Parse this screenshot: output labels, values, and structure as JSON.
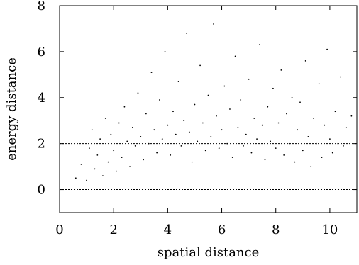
{
  "chart_data": {
    "type": "scatter",
    "title": "",
    "xlabel": "spatial distance",
    "ylabel": "energy distance",
    "xlim": [
      0,
      11
    ],
    "ylim": [
      -1,
      8
    ],
    "xticks": [
      0,
      2,
      4,
      6,
      8,
      10
    ],
    "yticks": [
      0,
      2,
      4,
      6,
      8
    ],
    "reference_lines": [
      {
        "axis": "y",
        "value": 2,
        "style": "dashed"
      },
      {
        "axis": "y",
        "value": 0,
        "style": "dashed"
      }
    ],
    "grid": false,
    "legend": "none",
    "point_color": "#000000",
    "series": [
      {
        "points": [
          [
            0.6,
            0.5
          ],
          [
            0.8,
            1.1
          ],
          [
            1.0,
            0.4
          ],
          [
            1.1,
            1.8
          ],
          [
            1.2,
            2.6
          ],
          [
            1.3,
            0.9
          ],
          [
            1.4,
            1.5
          ],
          [
            1.5,
            2.2
          ],
          [
            1.6,
            0.6
          ],
          [
            1.7,
            3.1
          ],
          [
            1.8,
            1.2
          ],
          [
            1.9,
            2.4
          ],
          [
            2.0,
            1.7
          ],
          [
            2.1,
            0.8
          ],
          [
            2.2,
            2.9
          ],
          [
            2.3,
            1.4
          ],
          [
            2.4,
            3.6
          ],
          [
            2.5,
            2.1
          ],
          [
            2.6,
            1.0
          ],
          [
            2.7,
            2.7
          ],
          [
            2.8,
            1.9
          ],
          [
            2.9,
            4.2
          ],
          [
            3.0,
            2.3
          ],
          [
            3.1,
            1.3
          ],
          [
            3.2,
            3.3
          ],
          [
            3.3,
            2.0
          ],
          [
            3.4,
            5.1
          ],
          [
            3.5,
            2.6
          ],
          [
            3.6,
            1.6
          ],
          [
            3.7,
            3.9
          ],
          [
            3.8,
            2.2
          ],
          [
            3.9,
            6.0
          ],
          [
            4.0,
            2.8
          ],
          [
            4.1,
            1.5
          ],
          [
            4.2,
            3.4
          ],
          [
            4.3,
            2.4
          ],
          [
            4.4,
            4.7
          ],
          [
            4.5,
            1.9
          ],
          [
            4.6,
            3.0
          ],
          [
            4.7,
            6.8
          ],
          [
            4.8,
            2.5
          ],
          [
            4.9,
            1.2
          ],
          [
            5.0,
            3.7
          ],
          [
            5.1,
            2.1
          ],
          [
            5.2,
            5.4
          ],
          [
            5.3,
            2.9
          ],
          [
            5.4,
            1.7
          ],
          [
            5.5,
            4.1
          ],
          [
            5.6,
            2.3
          ],
          [
            5.7,
            7.2
          ],
          [
            5.8,
            3.2
          ],
          [
            5.9,
            1.8
          ],
          [
            6.0,
            2.6
          ],
          [
            6.1,
            4.5
          ],
          [
            6.2,
            2.0
          ],
          [
            6.3,
            3.5
          ],
          [
            6.4,
            1.4
          ],
          [
            6.5,
            5.8
          ],
          [
            6.6,
            2.7
          ],
          [
            6.7,
            3.9
          ],
          [
            6.8,
            1.9
          ],
          [
            6.9,
            2.4
          ],
          [
            7.0,
            4.8
          ],
          [
            7.1,
            1.6
          ],
          [
            7.2,
            3.1
          ],
          [
            7.3,
            2.2
          ],
          [
            7.4,
            6.3
          ],
          [
            7.5,
            2.8
          ],
          [
            7.6,
            1.3
          ],
          [
            7.7,
            3.6
          ],
          [
            7.8,
            2.1
          ],
          [
            7.9,
            4.4
          ],
          [
            8.0,
            1.8
          ],
          [
            8.1,
            2.9
          ],
          [
            8.2,
            5.2
          ],
          [
            8.3,
            1.5
          ],
          [
            8.4,
            3.3
          ],
          [
            8.5,
            2.0
          ],
          [
            8.6,
            4.0
          ],
          [
            8.7,
            1.2
          ],
          [
            8.8,
            2.6
          ],
          [
            8.9,
            3.8
          ],
          [
            9.0,
            1.7
          ],
          [
            9.1,
            5.6
          ],
          [
            9.2,
            2.3
          ],
          [
            9.3,
            1.0
          ],
          [
            9.4,
            3.1
          ],
          [
            9.5,
            2.0
          ],
          [
            9.6,
            4.6
          ],
          [
            9.7,
            1.4
          ],
          [
            9.8,
            2.8
          ],
          [
            9.9,
            6.1
          ],
          [
            10.0,
            2.2
          ],
          [
            10.1,
            1.6
          ],
          [
            10.2,
            3.4
          ],
          [
            10.3,
            2.0
          ],
          [
            10.4,
            4.9
          ],
          [
            10.5,
            1.9
          ],
          [
            10.6,
            2.7
          ],
          [
            10.8,
            3.2
          ]
        ]
      }
    ]
  }
}
